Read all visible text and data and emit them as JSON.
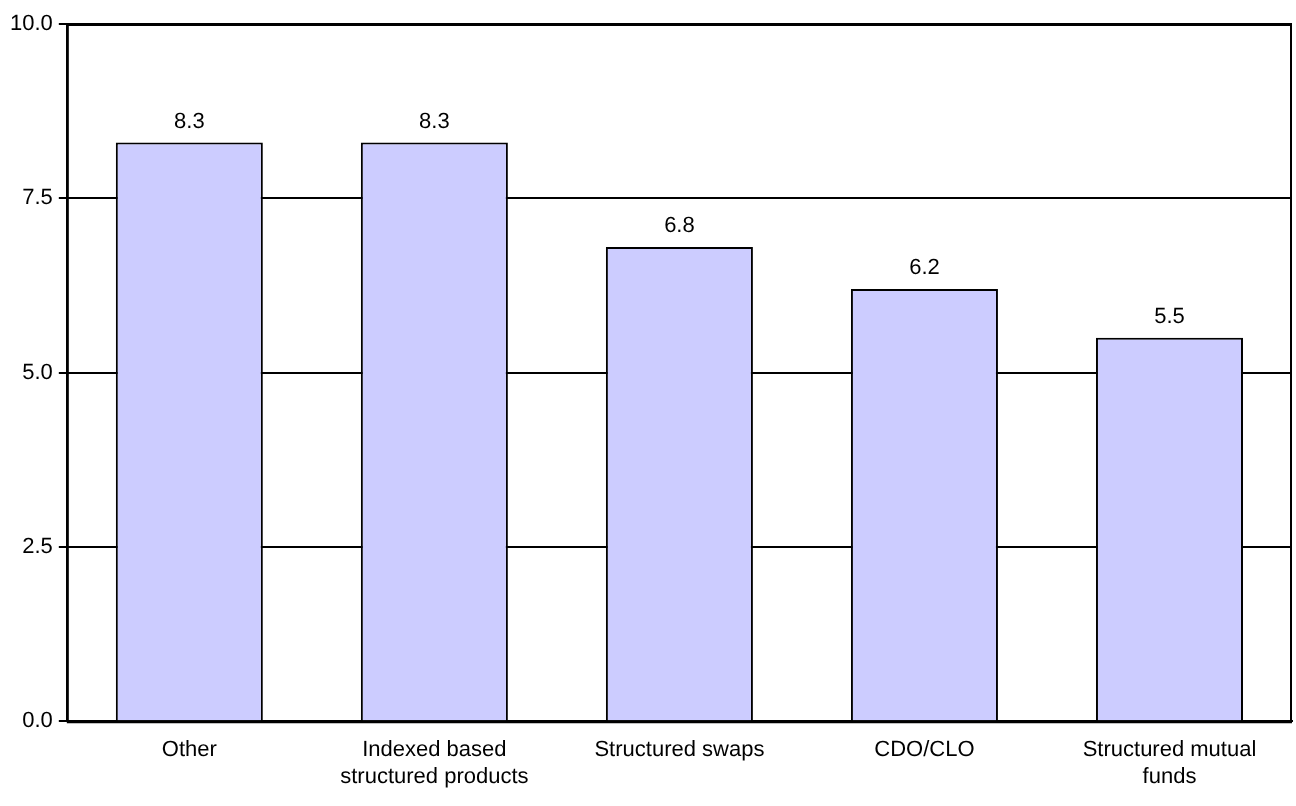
{
  "chart_data": {
    "type": "bar",
    "categories": [
      "Other",
      "Indexed based structured products",
      "Structured swaps",
      "CDO/CLO",
      "Structured mutual funds"
    ],
    "values": [
      8.3,
      8.3,
      6.8,
      6.2,
      5.5
    ],
    "color": "#ccccff",
    "ylim": [
      0,
      10
    ],
    "yticks": [
      {
        "value": 0,
        "label": "0.0"
      },
      {
        "value": 2.5,
        "label": "2.5"
      },
      {
        "value": 5,
        "label": "5.0"
      },
      {
        "value": 7.5,
        "label": "7.5"
      },
      {
        "value": 10,
        "label": "10.0"
      }
    ],
    "grid": "y",
    "data_labels": true
  }
}
